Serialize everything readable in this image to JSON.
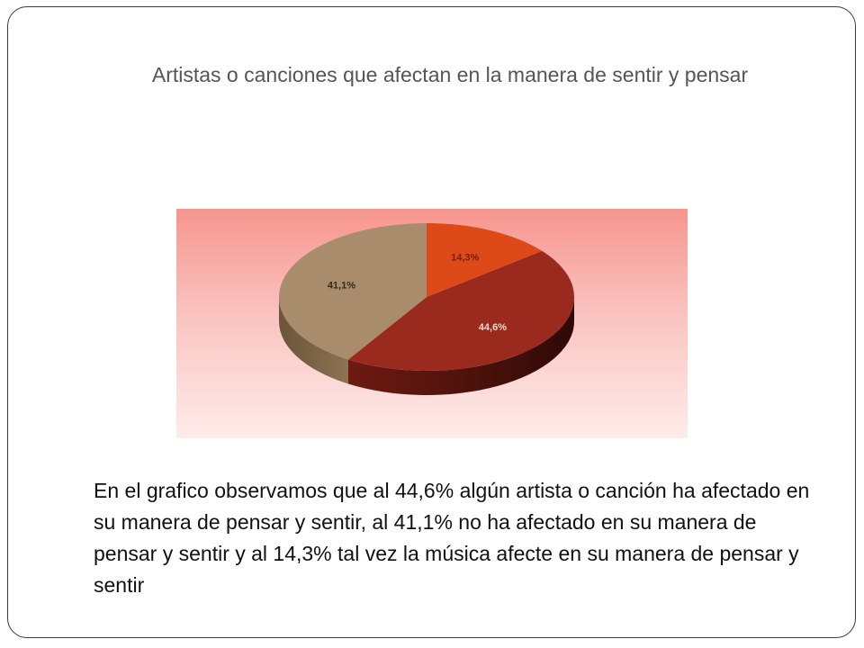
{
  "slide": {
    "title": "Artistas o canciones que afectan en la manera de sentir y pensar",
    "caption": "En el grafico observamos que al 44,6% algún artista o canción ha afectado en su manera de pensar y sentir, al 41,1% no ha afectado en su manera de pensar y sentir y al 14,3% tal vez la música afecte en su manera de pensar y sentir"
  },
  "chart_data": {
    "type": "pie",
    "style": "3d",
    "title": "",
    "legend": "none",
    "slices": [
      {
        "value": 14.3,
        "label": "14,3%",
        "color": "#dd4a18",
        "label_color": "#7a1e08"
      },
      {
        "value": 44.6,
        "label": "44,6%",
        "color": "#9b2a1e",
        "label_color": "#f2d6cf"
      },
      {
        "value": 41.1,
        "label": "41,1%",
        "color": "#a88c6c",
        "label_color": "#3a2a1a"
      }
    ]
  }
}
